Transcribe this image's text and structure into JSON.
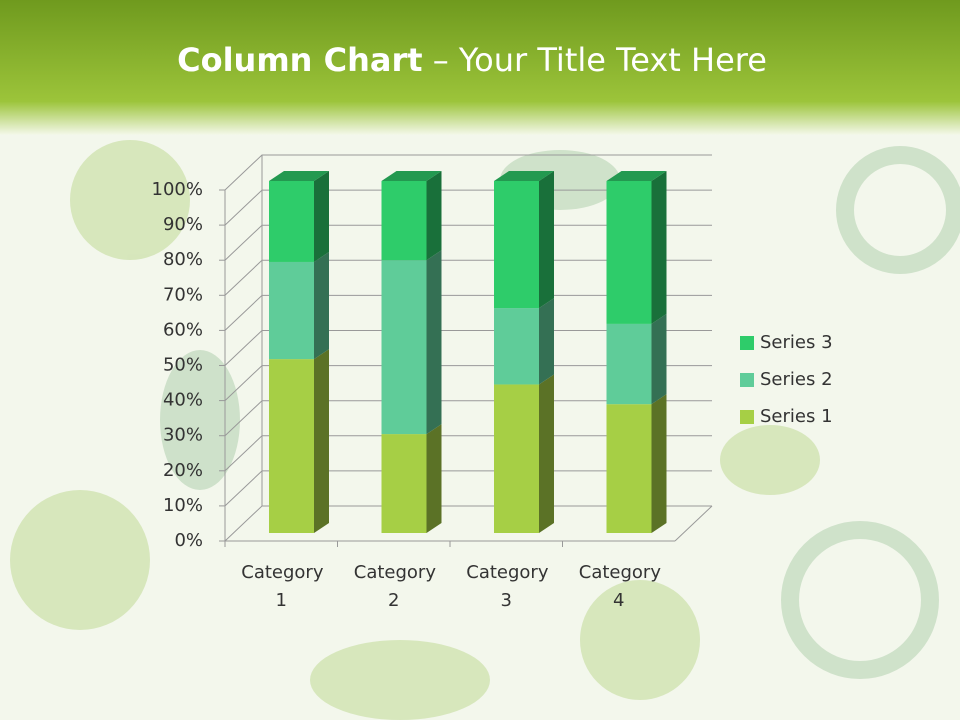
{
  "chart_data": {
    "type": "bar",
    "stacked": true,
    "title": [
      "Column Chart",
      "– Your Title Text Here"
    ],
    "categories": [
      "Category 1",
      "Category 2",
      "Category 3",
      "Category 4"
    ],
    "series": [
      {
        "name": "Series 1",
        "color": "#a6cf45",
        "values": [
          49.4,
          28.1,
          42.2,
          36.6
        ]
      },
      {
        "name": "Series 2",
        "color": "#5fcc99",
        "values": [
          27.6,
          49.4,
          21.7,
          22.8
        ]
      },
      {
        "name": "Series 3",
        "color": "#2ecc6a",
        "values": [
          23.0,
          22.5,
          36.1,
          40.6
        ]
      }
    ],
    "ylim": [
      0,
      100
    ],
    "yticks": [
      {
        "value": 0,
        "label": "0%"
      },
      {
        "value": 10,
        "label": "10%"
      },
      {
        "value": 20,
        "label": "20%"
      },
      {
        "value": 30,
        "label": "30%"
      },
      {
        "value": 40,
        "label": "40%"
      },
      {
        "value": 50,
        "label": "50%"
      },
      {
        "value": 60,
        "label": "60%"
      },
      {
        "value": 70,
        "label": "70%"
      },
      {
        "value": 80,
        "label": "80%"
      },
      {
        "value": 90,
        "label": "90%"
      },
      {
        "value": 100,
        "label": "100%"
      }
    ],
    "grid": true,
    "legend": "right"
  }
}
